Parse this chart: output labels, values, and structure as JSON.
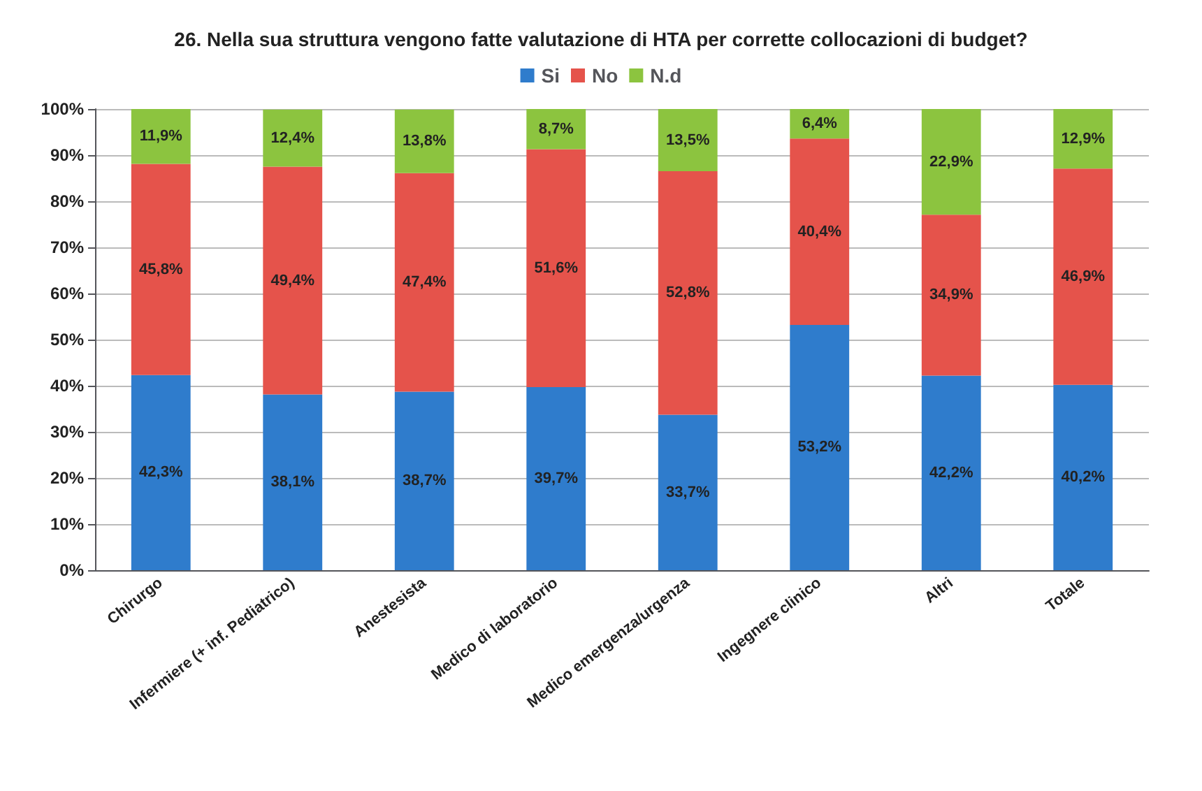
{
  "chart_data": {
    "type": "bar",
    "title": "26. Nella sua struttura vengono fatte valutazione di HTA per corrette collocazioni di budget?",
    "categories": [
      "Chirurgo",
      "Infermiere (+ inf. Pediatrico)",
      "Anestesista",
      "Medico di laboratorio",
      "Medico emergenza/urgenza",
      "Ingegnere clinico",
      "Altri",
      "Totale"
    ],
    "series": [
      {
        "name": "Si",
        "color": "#2f7ccc",
        "values": [
          42.3,
          38.1,
          38.7,
          39.7,
          33.7,
          53.2,
          42.2,
          40.2
        ],
        "value_labels": [
          "42,3%",
          "38,1%",
          "38,7%",
          "39,7%",
          "33,7%",
          "53,2%",
          "42,2%",
          "40,2%"
        ]
      },
      {
        "name": "No",
        "color": "#e5534b",
        "values": [
          45.8,
          49.4,
          47.4,
          51.6,
          52.8,
          40.4,
          34.9,
          46.9
        ],
        "value_labels": [
          "45,8%",
          "49,4%",
          "47,4%",
          "51,6%",
          "52,8%",
          "40,4%",
          "34,9%",
          "46,9%"
        ]
      },
      {
        "name": "N.d",
        "color": "#8cc43f",
        "values": [
          11.9,
          12.4,
          13.8,
          8.7,
          13.5,
          6.4,
          22.9,
          12.9
        ],
        "value_labels": [
          "11,9%",
          "12,4%",
          "13,8%",
          "8,7%",
          "13,5%",
          "6,4%",
          "22,9%",
          "12,9%"
        ]
      }
    ],
    "stacked": true,
    "ylim": [
      0,
      100
    ],
    "yticks": [
      {
        "value": 0,
        "label": "0%"
      },
      {
        "value": 10,
        "label": "10%"
      },
      {
        "value": 20,
        "label": "20%"
      },
      {
        "value": 30,
        "label": "30%"
      },
      {
        "value": 40,
        "label": "40%"
      },
      {
        "value": 50,
        "label": "50%"
      },
      {
        "value": 60,
        "label": "60%"
      },
      {
        "value": 70,
        "label": "70%"
      },
      {
        "value": 80,
        "label": "80%"
      },
      {
        "value": 90,
        "label": "90%"
      },
      {
        "value": 100,
        "label": "100%"
      }
    ],
    "grid": "y",
    "legend": "top"
  }
}
